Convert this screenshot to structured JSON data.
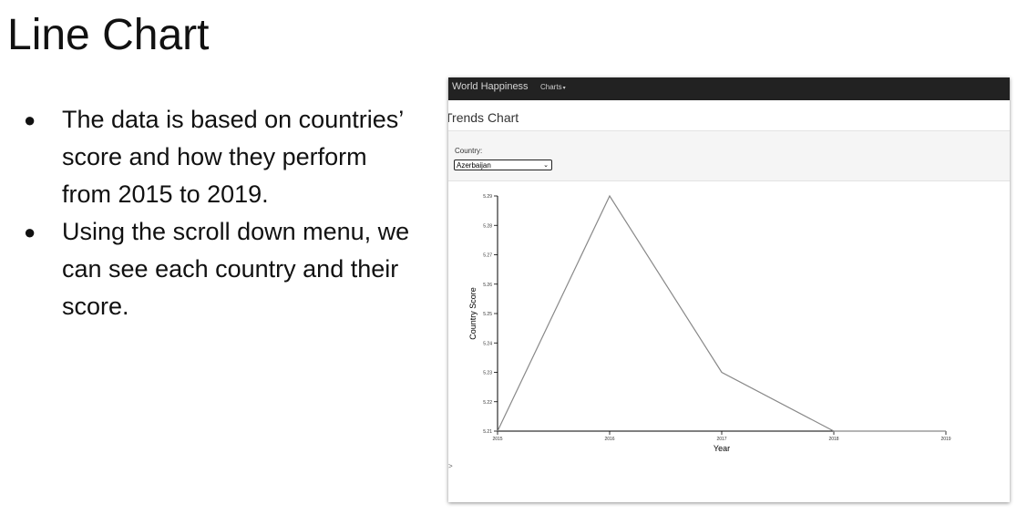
{
  "slide": {
    "title": "Line Chart",
    "bullets": [
      "The data is based on countries’ score and how they perform from 2015 to 2019.",
      "Using the scroll down menu, we can see each country and their score."
    ],
    "bullet_glyph": "●"
  },
  "app": {
    "brand": "World Happiness",
    "menu_label": "Charts",
    "page_title": "Trends Chart",
    "filter_label": "Country:",
    "selected_country": "Azerbaijan",
    "footer_glyph": ">"
  },
  "chart_data": {
    "type": "line",
    "title": "",
    "xlabel": "Year",
    "ylabel": "Country Score",
    "x": [
      2015,
      2016,
      2017,
      2018,
      2019
    ],
    "values": [
      5.21,
      5.29,
      5.23,
      5.21,
      5.21
    ],
    "xticks": [
      "2015",
      "2016",
      "2017",
      "2018",
      "2019"
    ],
    "yticks": [
      5.21,
      5.22,
      5.23,
      5.24,
      5.25,
      5.26,
      5.27,
      5.28,
      5.29
    ],
    "ylim": [
      5.21,
      5.29
    ],
    "grid": false,
    "line_color": "#888888"
  }
}
